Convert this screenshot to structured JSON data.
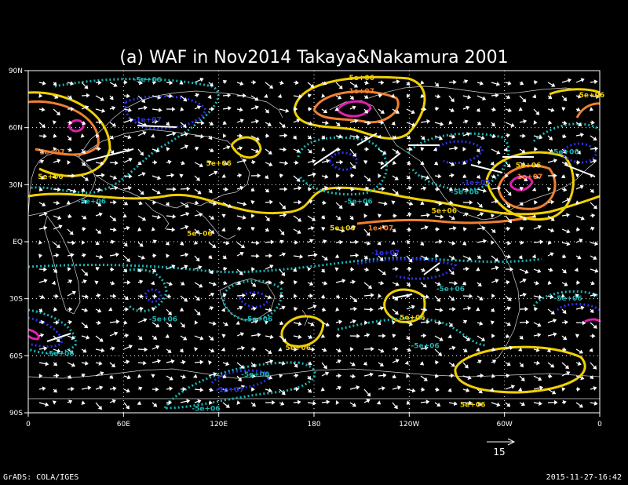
{
  "chart_data": {
    "type": "contour",
    "title": "(a) WAF in Nov2014 Takaya&Nakamura 2001",
    "x_ticks": [
      "0",
      "60E",
      "120E",
      "180",
      "120W",
      "60W",
      "0"
    ],
    "x_tick_values": [
      0,
      60,
      120,
      180,
      240,
      300,
      360
    ],
    "y_ticks": [
      "90N",
      "60N",
      "30N",
      "EQ",
      "30S",
      "60S",
      "90S"
    ],
    "y_tick_values": [
      90,
      60,
      30,
      0,
      -30,
      -60,
      -90
    ],
    "xlim": [
      0,
      360
    ],
    "ylim": [
      -90,
      90
    ],
    "grid": true,
    "vector_reference": {
      "label": "15",
      "value": 15
    },
    "contour_levels": [
      {
        "value": "-1e+07",
        "color": "#2f2fe8"
      },
      {
        "value": "-5e+06",
        "color": "#1ab3b3"
      },
      {
        "value": "5e+06",
        "color": "#f0d000"
      },
      {
        "value": "1e+07",
        "color": "#f08030"
      }
    ],
    "contour_labels": [
      {
        "text": "-5e+06",
        "lon": 75,
        "lat": 84,
        "color": "#1ab3b3"
      },
      {
        "text": "-1e+07",
        "lon": 75,
        "lat": 63,
        "color": "#2f2fe8"
      },
      {
        "text": "1e+07",
        "lon": 15,
        "lat": 46,
        "color": "#f08030"
      },
      {
        "text": "5e+06",
        "lon": 14,
        "lat": 33,
        "color": "#f0d000"
      },
      {
        "text": "-5e+06",
        "lon": 40,
        "lat": 20,
        "color": "#1ab3b3"
      },
      {
        "text": "5e+06",
        "lon": 120,
        "lat": 40,
        "color": "#f0d000"
      },
      {
        "text": "5e+06",
        "lon": 108,
        "lat": 3,
        "color": "#f0d000"
      },
      {
        "text": "5e+06",
        "lon": 210,
        "lat": 85,
        "color": "#f0d000"
      },
      {
        "text": "1e+07",
        "lon": 210,
        "lat": 78,
        "color": "#f08030"
      },
      {
        "text": "-5e+06",
        "lon": 208,
        "lat": 20,
        "color": "#1ab3b3"
      },
      {
        "text": "5e+06",
        "lon": 198,
        "lat": 6,
        "color": "#f0d000"
      },
      {
        "text": "1e+07",
        "lon": 222,
        "lat": 6,
        "color": "#f08030"
      },
      {
        "text": "-1e+07",
        "lon": 282,
        "lat": 30,
        "color": "#2f2fe8"
      },
      {
        "text": "-5e+06",
        "lon": 275,
        "lat": 25,
        "color": "#1ab3b3"
      },
      {
        "text": "5e+06",
        "lon": 262,
        "lat": 15,
        "color": "#f0d000"
      },
      {
        "text": "5e+06",
        "lon": 315,
        "lat": 39,
        "color": "#f0d000"
      },
      {
        "text": "1e+07",
        "lon": 316,
        "lat": 33,
        "color": "#f08030"
      },
      {
        "text": "-5e+06",
        "lon": 338,
        "lat": 46,
        "color": "#1ab3b3"
      },
      {
        "text": "5e+06",
        "lon": 355,
        "lat": 76,
        "color": "#f0d000"
      },
      {
        "text": "-1e+07",
        "lon": 225,
        "lat": -7,
        "color": "#2f2fe8"
      },
      {
        "text": "-5e+06",
        "lon": 266,
        "lat": -26,
        "color": "#1ab3b3"
      },
      {
        "text": "5e+06",
        "lon": 242,
        "lat": -41,
        "color": "#f0d000"
      },
      {
        "text": "-5e+06",
        "lon": 250,
        "lat": -56,
        "color": "#1ab3b3"
      },
      {
        "text": "-5e+06",
        "lon": 85,
        "lat": -42,
        "color": "#1ab3b3"
      },
      {
        "text": "-5e+06",
        "lon": 145,
        "lat": -42,
        "color": "#1ab3b3"
      },
      {
        "text": "5e+06",
        "lon": 170,
        "lat": -57,
        "color": "#f0d000"
      },
      {
        "text": "-5e+06",
        "lon": 20,
        "lat": -60,
        "color": "#1ab3b3"
      },
      {
        "text": "-5e+06",
        "lon": 143,
        "lat": -71,
        "color": "#1ab3b3"
      },
      {
        "text": "-1e+07",
        "lon": 127,
        "lat": -79,
        "color": "#2f2fe8"
      },
      {
        "text": "-5e+06",
        "lon": 112,
        "lat": -89,
        "color": "#1ab3b3"
      },
      {
        "text": "5e+06",
        "lon": 280,
        "lat": -87,
        "color": "#f0d000"
      },
      {
        "text": "-5e+06",
        "lon": 340,
        "lat": -31,
        "color": "#1ab3b3"
      }
    ]
  },
  "footer": {
    "left": "GrADS: COLA/IGES",
    "right": "2015-11-27-16:42"
  }
}
